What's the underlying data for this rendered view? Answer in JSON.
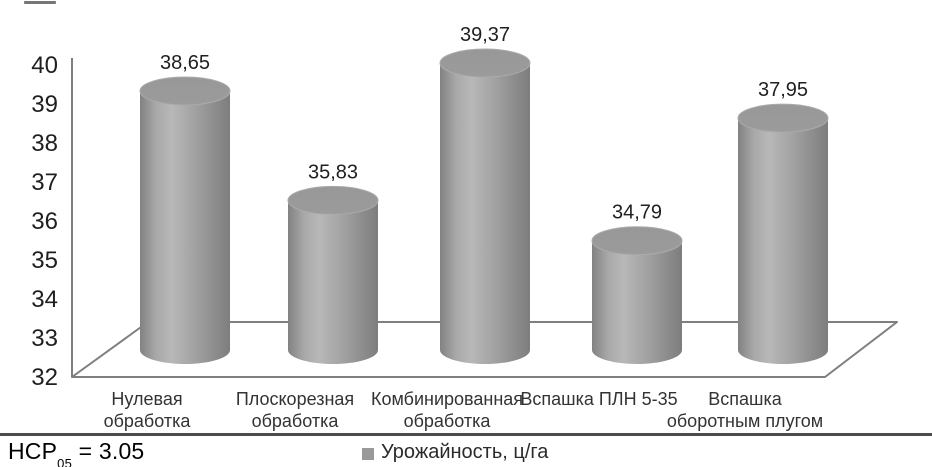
{
  "chart_data": {
    "type": "bar",
    "style": "3d-cylinder",
    "categories": [
      "Нулевая обработка",
      "Плоскорезная обработка",
      "Комбинированная обработка",
      "Вспашка ПЛН 5-35",
      "Вспашка оборотным плугом"
    ],
    "category_lines": [
      [
        "Нулевая",
        "обработка"
      ],
      [
        "Плоскорезная",
        "обработка"
      ],
      [
        "Комбинированная",
        "обработка"
      ],
      [
        "Вспашка ПЛН 5-35"
      ],
      [
        "Вспашка",
        "оборотным плугом"
      ]
    ],
    "values": [
      38.65,
      35.83,
      39.37,
      34.79,
      37.95
    ],
    "value_labels": [
      "38,65",
      "35,83",
      "39,37",
      "34,79",
      "37,95"
    ],
    "series_name": "Урожайность, ц/га",
    "ylim": [
      32,
      40
    ],
    "y_ticks": [
      32,
      33,
      34,
      35,
      36,
      37,
      38,
      39,
      40
    ],
    "grid": false,
    "legend_position": "bottom-center",
    "bar_color": "#9e9e9e",
    "bar_edge_dark": "#828282",
    "bar_highlight": "#b8b8b8",
    "cap_color": "#9b9b9b",
    "axis_color": "#7f7f7f",
    "label_color": "#1f1f1f",
    "category_color": "#333333"
  },
  "legend": {
    "marker_color": "#999999",
    "label": "Урожайность, ц/га"
  },
  "footer": {
    "hcp_prefix": "НСР",
    "hcp_sub": "05",
    "hcp_rest": " = 3.05"
  }
}
